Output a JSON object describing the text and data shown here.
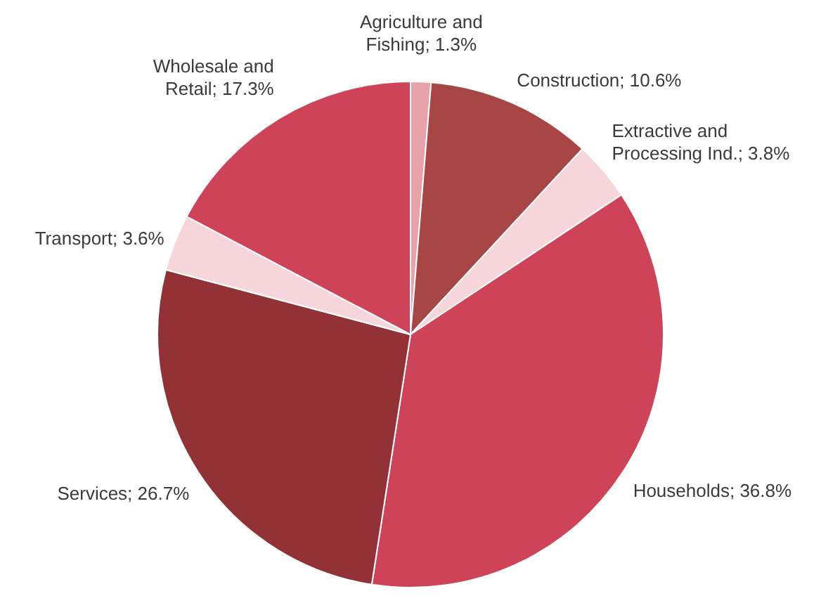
{
  "chart_data": {
    "type": "pie",
    "categories": [
      "Agriculture and Fishing",
      "Construction",
      "Extractive and Processing Ind.",
      "Households",
      "Services",
      "Transport",
      "Wholesale and Retail"
    ],
    "values": [
      1.3,
      10.6,
      3.8,
      36.8,
      26.7,
      3.6,
      17.3
    ],
    "value_labels": [
      "1.3%",
      "10.6%",
      "3.8%",
      "36.8%",
      "26.7%",
      "3.6%",
      "17.3%"
    ],
    "colors": [
      "#e8a2aa",
      "#a84545",
      "#f6d6da",
      "#cf4358",
      "#933236",
      "#f6d6da",
      "#cf4358"
    ]
  }
}
